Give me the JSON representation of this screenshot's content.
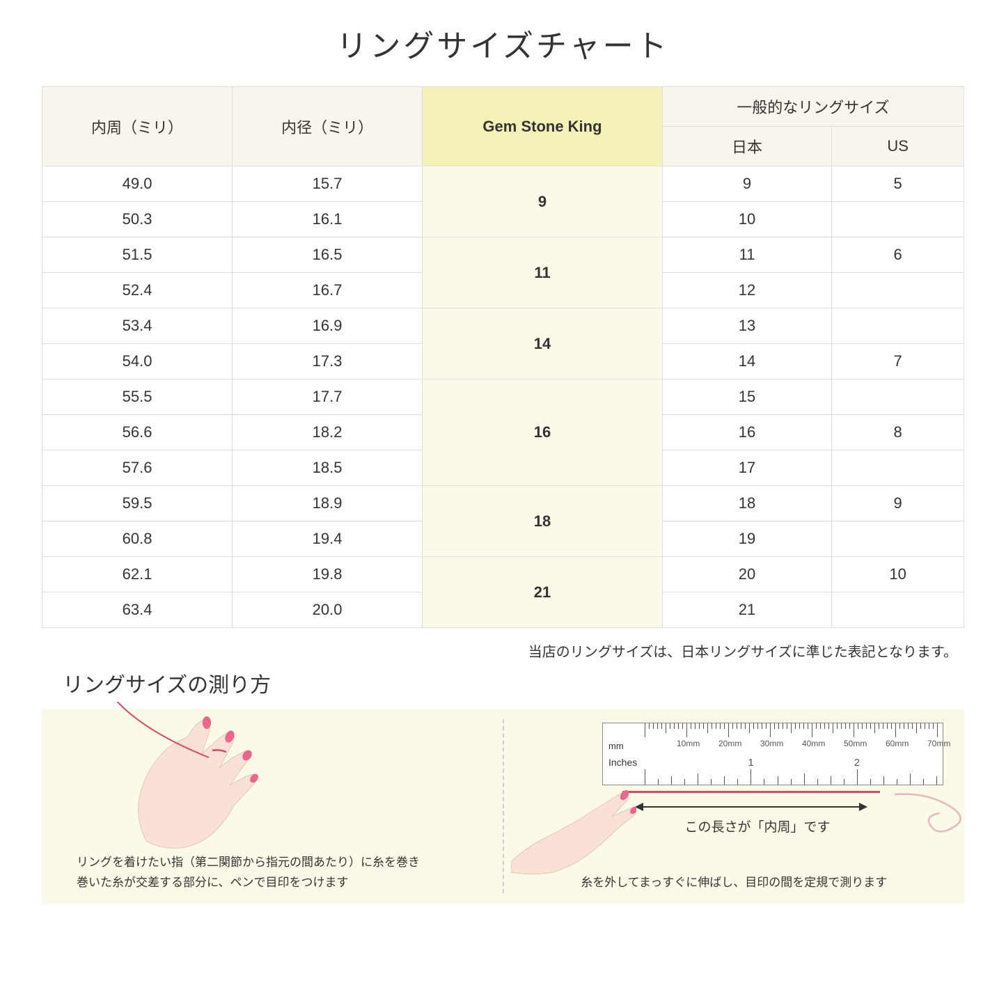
{
  "title": "リングサイズチャート",
  "headers": {
    "circumference": "内周（ミリ）",
    "diameter": "内径（ミリ）",
    "gsk": "Gem Stone King",
    "common": "一般的なリングサイズ",
    "japan": "日本",
    "us": "US"
  },
  "groups": [
    {
      "gsk": "9",
      "rows": [
        {
          "c": "49.0",
          "d": "15.7",
          "jp": "9",
          "us": "5"
        },
        {
          "c": "50.3",
          "d": "16.1",
          "jp": "10",
          "us": ""
        }
      ]
    },
    {
      "gsk": "11",
      "rows": [
        {
          "c": "51.5",
          "d": "16.5",
          "jp": "11",
          "us": "6"
        },
        {
          "c": "52.4",
          "d": "16.7",
          "jp": "12",
          "us": ""
        }
      ]
    },
    {
      "gsk": "14",
      "rows": [
        {
          "c": "53.4",
          "d": "16.9",
          "jp": "13",
          "us": ""
        },
        {
          "c": "54.0",
          "d": "17.3",
          "jp": "14",
          "us": "7"
        }
      ]
    },
    {
      "gsk": "16",
      "rows": [
        {
          "c": "55.5",
          "d": "17.7",
          "jp": "15",
          "us": ""
        },
        {
          "c": "56.6",
          "d": "18.2",
          "jp": "16",
          "us": "8"
        },
        {
          "c": "57.6",
          "d": "18.5",
          "jp": "17",
          "us": ""
        }
      ]
    },
    {
      "gsk": "18",
      "rows": [
        {
          "c": "59.5",
          "d": "18.9",
          "jp": "18",
          "us": "9"
        },
        {
          "c": "60.8",
          "d": "19.4",
          "jp": "19",
          "us": ""
        }
      ]
    },
    {
      "gsk": "21",
      "rows": [
        {
          "c": "62.1",
          "d": "19.8",
          "jp": "20",
          "us": "10"
        },
        {
          "c": "63.4",
          "d": "20.0",
          "jp": "21",
          "us": ""
        }
      ]
    }
  ],
  "note": "当店のリングサイズは、日本リングサイズに準じた表記となります。",
  "howto_title": "リングサイズの測り方",
  "howto_left_line1": "リングを着けたい指（第二関節から指元の間あたり）に糸を巻き",
  "howto_left_line2": "巻いた糸が交差する部分に、ペンで目印をつけます",
  "howto_right_text": "糸を外してまっすぐに伸ばし、目印の間を定規で測ります",
  "ruler": {
    "mm_label": "mm",
    "in_label": "Inches",
    "mm_marks": [
      "10mm",
      "20mm",
      "30mm",
      "40mm",
      "50mm",
      "60mm",
      "70mm"
    ],
    "in_marks": [
      "1",
      "2"
    ]
  },
  "length_label": "この長さが「内周」です",
  "colors": {
    "header_bg": "#f8f6ec",
    "gsk_header_bg": "#f5f2b8",
    "gsk_cell_bg": "#fbfae8",
    "border": "#dddddd",
    "thread": "#d94863",
    "skin": "#f9e1d5",
    "nail": "#e8678a"
  }
}
